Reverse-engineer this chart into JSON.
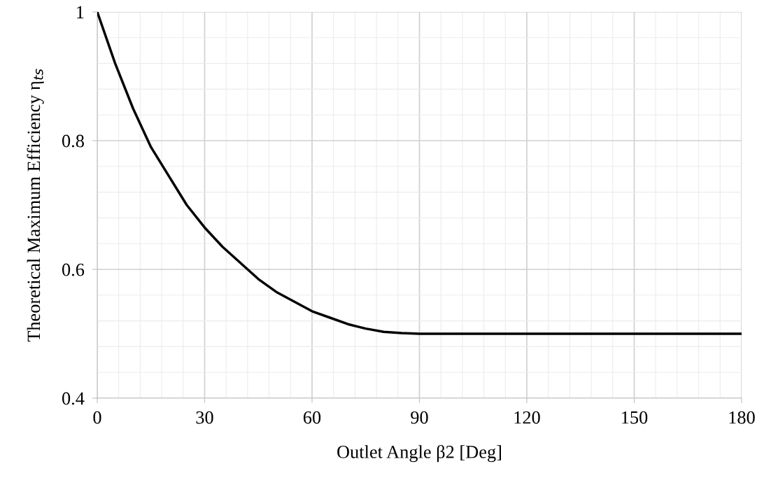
{
  "chart_data": {
    "type": "line",
    "xlabel": "Outlet Angle β2 [Deg]",
    "ylabel": "Theoretical Maximum Efficiency η$_{ts}$",
    "x": [
      0,
      5,
      10,
      15,
      20,
      25,
      30,
      35,
      40,
      45,
      50,
      55,
      60,
      65,
      70,
      75,
      80,
      85,
      90,
      120,
      150,
      180
    ],
    "series": [
      {
        "color": "#000000",
        "values": [
          1.0,
          0.92,
          0.85,
          0.79,
          0.745,
          0.7,
          0.665,
          0.635,
          0.61,
          0.585,
          0.565,
          0.55,
          0.535,
          0.525,
          0.515,
          0.508,
          0.503,
          0.501,
          0.5,
          0.5,
          0.5,
          0.5
        ]
      }
    ],
    "xlim": [
      0,
      180
    ],
    "xticks": [
      0,
      30,
      60,
      90,
      120,
      150,
      180
    ],
    "ylim": [
      0.4,
      1
    ],
    "yticks": [
      0.4,
      0.6,
      0.8,
      1
    ],
    "grid": true,
    "marker": "none",
    "line_style": "solid",
    "legend": false
  }
}
